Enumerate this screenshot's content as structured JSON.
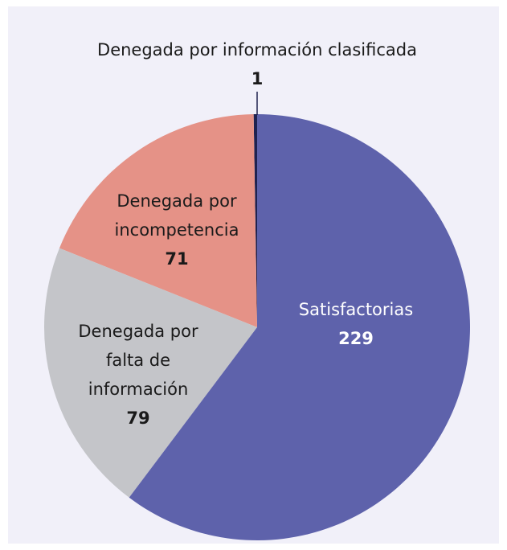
{
  "chart_data": {
    "type": "pie",
    "categories": [
      "Satisfactorias",
      "Denegada por falta de información",
      "Denegada por incompetencia",
      "Denegada por información clasificada"
    ],
    "values": [
      229,
      79,
      71,
      1
    ],
    "colors": [
      "#5e62ab",
      "#c4c5c9",
      "#e59287",
      "#1f2250"
    ]
  }
}
